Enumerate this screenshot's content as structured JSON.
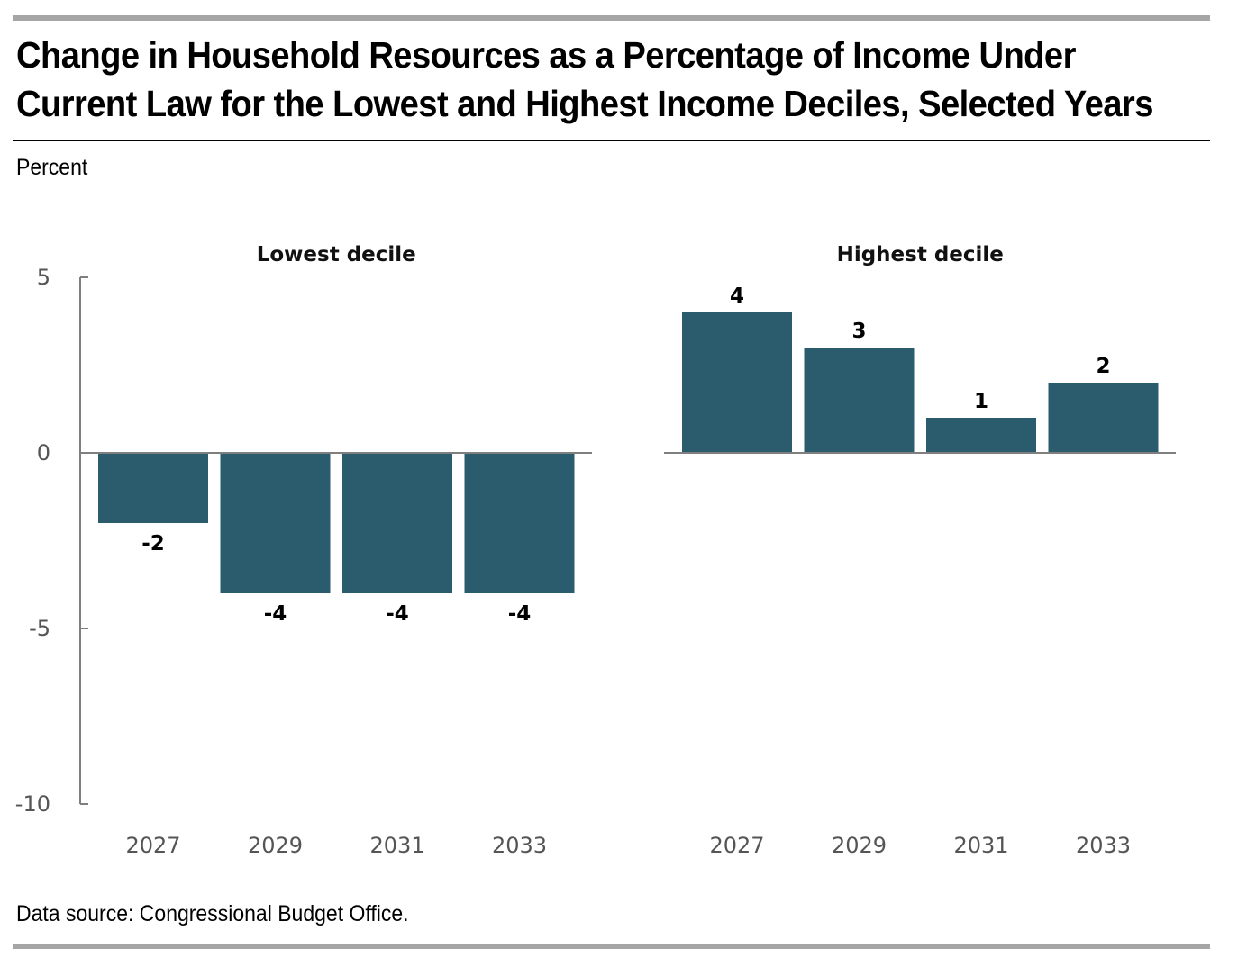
{
  "title_lines": [
    "Change in Household Resources as a Percentage of Income Under",
    "Current Law for the Lowest and Highest Income Deciles, Selected Years"
  ],
  "unit_label": "Percent",
  "source_note": "Data source: Congressional Budget Office.",
  "colors": {
    "bar": "#2a5c6e",
    "axis": "#7f7f7f",
    "rule": "#a6a6a6"
  },
  "chart_data": {
    "type": "bar",
    "ylim": [
      -10,
      5
    ],
    "yticks": [
      5,
      0,
      -5,
      -10
    ],
    "panels": [
      {
        "title": "Lowest decile",
        "categories": [
          "2027",
          "2029",
          "2031",
          "2033"
        ],
        "values": [
          -2,
          -4,
          -4,
          -4
        ],
        "data_labels": [
          "-2",
          "-4",
          "-4",
          "-4"
        ]
      },
      {
        "title": "Highest decile",
        "categories": [
          "2027",
          "2029",
          "2031",
          "2033"
        ],
        "values": [
          4,
          3,
          1,
          2
        ],
        "data_labels": [
          "4",
          "3",
          "1",
          "2"
        ]
      }
    ]
  }
}
